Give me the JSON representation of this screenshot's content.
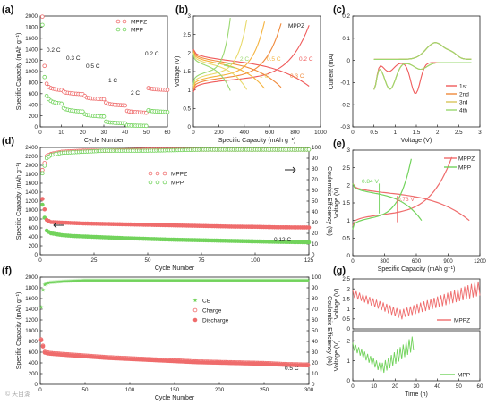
{
  "watermark": "© 天目湖",
  "colors": {
    "mppz": "#ef6c6c",
    "mpp": "#72d35c",
    "ce_mpp": "#72d35c"
  },
  "chart_data": [
    {
      "panel": "(a)",
      "type": "scatter",
      "xlabel": "Cycle Number",
      "ylabel": "Specific Capacity (mAh g⁻¹)",
      "xlim": [
        0,
        60
      ],
      "ylim": [
        0,
        2000
      ],
      "xticks": [
        0,
        10,
        20,
        30,
        40,
        50,
        60
      ],
      "yticks": [
        0,
        200,
        400,
        600,
        800,
        1000,
        1200,
        1400,
        1600,
        1800,
        2000
      ],
      "legend": [
        "MPPZ",
        "MPP"
      ],
      "legend_position": "top-right",
      "annotations": [
        "0.2 C",
        "0.3 C",
        "0.5 C",
        "1 C",
        "2 C",
        "0.2 C"
      ],
      "series": [
        {
          "name": "MPPZ",
          "segments": [
            {
              "x": [
                1,
                2,
                3,
                4,
                5,
                6,
                7,
                8,
                9,
                10
              ],
              "y": [
                1990,
                1100,
                780,
                720,
                700,
                690,
                680,
                675,
                670,
                668
              ]
            },
            {
              "x": [
                11,
                12,
                13,
                14,
                15,
                16,
                17,
                18,
                19,
                20
              ],
              "y": [
                640,
                620,
                615,
                610,
                605,
                600,
                598,
                595,
                592,
                590
              ]
            },
            {
              "x": [
                21,
                22,
                23,
                24,
                25,
                26,
                27,
                28,
                29,
                30
              ],
              "y": [
                560,
                530,
                520,
                515,
                512,
                510,
                508,
                505,
                503,
                500
              ]
            },
            {
              "x": [
                31,
                32,
                33,
                34,
                35,
                36,
                37,
                38,
                39,
                40
              ],
              "y": [
                440,
                420,
                410,
                405,
                400,
                398,
                395,
                392,
                390,
                388
              ]
            },
            {
              "x": [
                41,
                42,
                43,
                44,
                45,
                46,
                47,
                48,
                49,
                50
              ],
              "y": [
                290,
                280,
                275,
                270,
                268,
                265,
                262,
                260,
                258,
                255
              ]
            },
            {
              "x": [
                51,
                52,
                53,
                54,
                55,
                56,
                57,
                58,
                59,
                60
              ],
              "y": [
                700,
                690,
                685,
                680,
                678,
                676,
                674,
                672,
                670,
                668
              ]
            }
          ]
        },
        {
          "name": "MPP",
          "segments": [
            {
              "x": [
                1,
                2,
                3,
                4,
                5,
                6,
                7,
                8,
                9,
                10
              ],
              "y": [
                1840,
                900,
                560,
                500,
                470,
                450,
                440,
                430,
                425,
                420
              ]
            },
            {
              "x": [
                11,
                12,
                13,
                14,
                15,
                16,
                17,
                18,
                19,
                20
              ],
              "y": [
                340,
                320,
                310,
                300,
                295,
                290,
                285,
                282,
                280,
                278
              ]
            },
            {
              "x": [
                21,
                22,
                23,
                24,
                25,
                26,
                27,
                28,
                29,
                30
              ],
              "y": [
                230,
                215,
                210,
                205,
                200,
                198,
                195,
                192,
                190,
                188
              ]
            },
            {
              "x": [
                31,
                32,
                33,
                34,
                35,
                36,
                37,
                38,
                39,
                40
              ],
              "y": [
                95,
                85,
                80,
                78,
                75,
                72,
                70,
                68,
                66,
                65
              ]
            },
            {
              "x": [
                41,
                42,
                43,
                44,
                45,
                46,
                47,
                48,
                49,
                50
              ],
              "y": [
                30,
                28,
                25,
                24,
                23,
                22,
                21,
                20,
                20,
                19
              ]
            },
            {
              "x": [
                51,
                52,
                53,
                54,
                55,
                56,
                57,
                58,
                59,
                60
              ],
              "y": [
                300,
                290,
                285,
                282,
                280,
                278,
                276,
                274,
                272,
                270
              ]
            }
          ]
        }
      ]
    },
    {
      "panel": "(b)",
      "type": "line",
      "xlabel": "Specific Capacity (mAh g⁻¹)",
      "ylabel": "Voltage (V)",
      "xlim": [
        0,
        1000
      ],
      "ylim": [
        0,
        3.0
      ],
      "xticks": [
        0,
        200,
        400,
        600,
        800,
        1000
      ],
      "yticks": [
        0,
        0.5,
        1.0,
        1.5,
        2.0,
        2.5,
        3.0
      ],
      "title_in_plot": "MPPZ",
      "series": [
        {
          "name": "0.2 C",
          "color": "#ef5a5a",
          "capacity": 910
        },
        {
          "name": "0.3 C",
          "color": "#f08a3c",
          "capacity": 690
        },
        {
          "name": "0.5 C",
          "color": "#f4b23c",
          "capacity": 560
        },
        {
          "name": "1 C",
          "color": "#e8d96a",
          "capacity": 420
        },
        {
          "name": "2 C",
          "color": "#9ad870",
          "capacity": 290
        }
      ]
    },
    {
      "panel": "(c)",
      "type": "line",
      "xlabel": "Voltage (V)",
      "ylabel": "Current (mA)",
      "xlim": [
        0,
        3.0
      ],
      "ylim": [
        -0.3,
        0.2
      ],
      "xticks": [
        0,
        0.5,
        1.0,
        1.5,
        2.0,
        2.5,
        3.0
      ],
      "yticks": [
        -0.3,
        -0.2,
        -0.1,
        0.0,
        0.1,
        0.2
      ],
      "legend": [
        "1st",
        "2nd",
        "3rd",
        "4th"
      ],
      "legend_position": "bottom-right",
      "series": [
        {
          "name": "1st",
          "color": "#ef5a5a"
        },
        {
          "name": "2nd",
          "color": "#f08a3c"
        },
        {
          "name": "3rd",
          "color": "#d8c45a"
        },
        {
          "name": "4th",
          "color": "#9ad870"
        }
      ]
    },
    {
      "panel": "(d)",
      "type": "scatter",
      "xlabel": "Cycle Number",
      "ylabel": "Specific Capacity (mAh g⁻¹)",
      "ylabel_right": "Coulombic Efficiency (%)",
      "xlim": [
        0,
        125
      ],
      "ylim": [
        0,
        2400
      ],
      "ylim_right": [
        0,
        100
      ],
      "xticks": [
        0,
        25,
        50,
        75,
        100,
        125
      ],
      "yticks": [
        0,
        200,
        400,
        600,
        800,
        1000,
        1200,
        1400,
        1600,
        1800,
        2000,
        2200,
        2400
      ],
      "yticks_right": [
        0,
        10,
        20,
        30,
        40,
        50,
        60,
        70,
        80,
        90,
        100
      ],
      "legend": [
        "MPPZ",
        "MPP"
      ],
      "legend_position": "center",
      "annotation": "0.12 C",
      "series": [
        {
          "name": "MPPZ capacity",
          "x": [
            1,
            3,
            5,
            10,
            15,
            20,
            30,
            40,
            50,
            60,
            70,
            80,
            90,
            100,
            110,
            125
          ],
          "y": [
            1250,
            780,
            730,
            720,
            710,
            700,
            690,
            680,
            670,
            660,
            650,
            640,
            630,
            625,
            615,
            610
          ]
        },
        {
          "name": "MPP capacity",
          "x": [
            1,
            3,
            5,
            10,
            15,
            20,
            30,
            40,
            50,
            60,
            70,
            80,
            90,
            100,
            110,
            125
          ],
          "y": [
            1120,
            540,
            480,
            440,
            420,
            410,
            390,
            370,
            355,
            340,
            330,
            320,
            310,
            300,
            290,
            280
          ]
        },
        {
          "name": "MPPZ CE",
          "x": [
            1,
            3,
            5,
            10,
            20,
            30,
            50,
            75,
            100,
            125
          ],
          "y": [
            79,
            92,
            94,
            96,
            97,
            97,
            98,
            98,
            98,
            98
          ]
        },
        {
          "name": "MPP CE",
          "x": [
            1,
            3,
            5,
            10,
            20,
            30,
            50,
            75,
            100,
            125
          ],
          "y": [
            76,
            90,
            93,
            95,
            96,
            97,
            97,
            98,
            98,
            98
          ]
        }
      ]
    },
    {
      "panel": "(e)",
      "type": "line",
      "xlabel": "Specific Capacity (mAh g⁻¹)",
      "ylabel": "Voltage (V)",
      "xlim": [
        0,
        1200
      ],
      "ylim": [
        0,
        3.0
      ],
      "xticks": [
        0,
        300,
        600,
        900,
        1200
      ],
      "yticks": [
        0,
        0.5,
        1.0,
        1.5,
        2.0,
        2.5,
        3.0
      ],
      "legend": [
        "MPPZ",
        "MPP"
      ],
      "legend_position": "top-right",
      "annotations": [
        "0.84 V",
        "0.73 V"
      ]
    },
    {
      "panel": "(f)",
      "type": "scatter",
      "xlabel": "Cycle Number",
      "ylabel": "Specific Capacity (mAh g⁻¹)",
      "ylabel_right": "Coulombic Efficiency (%)",
      "xlim": [
        0,
        300
      ],
      "ylim": [
        0,
        2000
      ],
      "ylim_right": [
        0,
        100
      ],
      "xticks": [
        0,
        50,
        100,
        150,
        200,
        250,
        300
      ],
      "yticks": [
        0,
        200,
        400,
        600,
        800,
        1000,
        1200,
        1400,
        1600,
        1800,
        2000
      ],
      "yticks_right": [
        0,
        10,
        20,
        30,
        40,
        50,
        60,
        70,
        80,
        90,
        100
      ],
      "legend": [
        "CE",
        "Charge",
        "Discharge"
      ],
      "legend_position": "center",
      "annotation": "0.5 C",
      "series": [
        {
          "name": "Charge",
          "x": [
            1,
            5,
            10,
            25,
            50,
            75,
            100,
            125,
            150,
            175,
            200,
            225,
            250,
            275,
            300
          ],
          "y": [
            830,
            600,
            580,
            560,
            530,
            500,
            480,
            460,
            440,
            420,
            410,
            400,
            390,
            370,
            360
          ]
        },
        {
          "name": "Discharge",
          "x": [
            1,
            5,
            10,
            25,
            50,
            75,
            100,
            125,
            150,
            175,
            200,
            225,
            250,
            275,
            300
          ],
          "y": [
            830,
            600,
            580,
            560,
            530,
            500,
            480,
            460,
            440,
            420,
            410,
            400,
            390,
            370,
            360
          ]
        },
        {
          "name": "CE",
          "x": [
            1,
            3,
            5,
            10,
            25,
            50,
            100,
            150,
            200,
            250,
            300
          ],
          "y": [
            72,
            88,
            93,
            95,
            96,
            97,
            97,
            97,
            97,
            97,
            97
          ]
        }
      ]
    },
    {
      "panel": "(g)",
      "type": "line",
      "xlabel": "Time (h)",
      "ylabel": "Voltage (V)",
      "xlim": [
        0,
        60
      ],
      "ylim": [
        0,
        2.0
      ],
      "xticks": [
        0,
        10,
        20,
        30,
        40,
        50,
        60
      ],
      "yticks_top": [
        0,
        0.5,
        1.0,
        1.5,
        2.0,
        2.5
      ],
      "yticks_bottom": [
        0,
        1.0,
        2.0
      ],
      "legend": [
        "MPPZ",
        "MPP"
      ],
      "legend_position": "bottom-right"
    }
  ]
}
